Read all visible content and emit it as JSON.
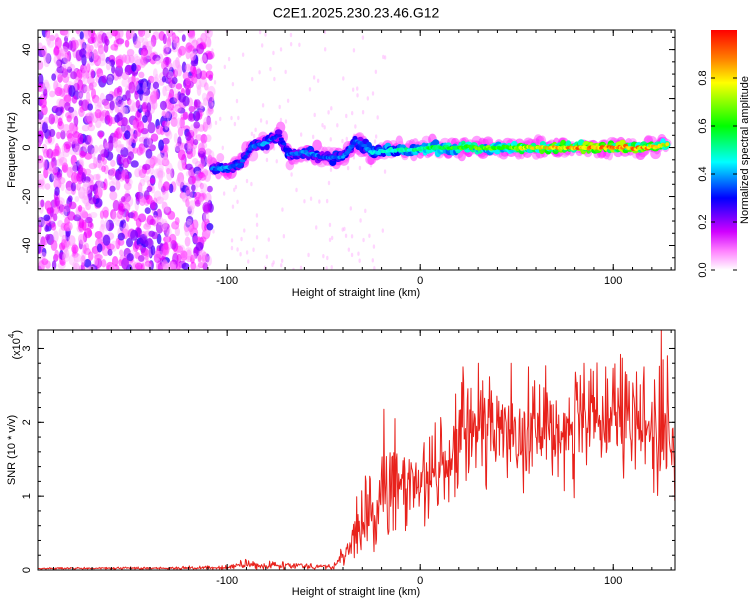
{
  "title": "C2E1.2025.230.23.46.G12",
  "chart_data": [
    {
      "type": "heatmap",
      "xlabel": "Height of straight line (km)",
      "ylabel": "Frequency (Hz)",
      "xlim": [
        -198,
        132
      ],
      "ylim": [
        -50,
        48
      ],
      "x_ticks": [
        -100,
        0,
        100
      ],
      "x_tick_labels": [
        "-100",
        "0",
        "100"
      ],
      "y_ticks": [
        -40,
        -20,
        0,
        20,
        40
      ],
      "y_tick_labels": [
        "-40",
        "-20",
        "0",
        "20",
        "40"
      ],
      "colorbar": {
        "label": "Normalized spectral amplitude",
        "range": [
          0,
          1
        ],
        "ticks": [
          0.0,
          0.2,
          0.4,
          0.6,
          0.8
        ],
        "tick_labels": [
          "0.0",
          "0.2",
          "0.4",
          "0.6",
          "0.8"
        ],
        "colors": [
          "#ffffff",
          "#ff00ff",
          "#0000ff",
          "#00ffff",
          "#00ff00",
          "#ffff00",
          "#ff0000"
        ]
      },
      "noise_region": {
        "x": [
          -198,
          -108
        ],
        "y": [
          -50,
          48
        ],
        "amplitude": [
          0.05,
          0.3
        ]
      },
      "signal_track": [
        {
          "x": -108,
          "y": -9,
          "amp": 0.4
        },
        {
          "x": -100,
          "y": -8,
          "amp": 0.45
        },
        {
          "x": -93,
          "y": -7,
          "amp": 0.4
        },
        {
          "x": -88,
          "y": 0,
          "amp": 0.4
        },
        {
          "x": -80,
          "y": 2,
          "amp": 0.45
        },
        {
          "x": -73,
          "y": 5,
          "amp": 0.35
        },
        {
          "x": -68,
          "y": -3,
          "amp": 0.4
        },
        {
          "x": -60,
          "y": -2,
          "amp": 0.45
        },
        {
          "x": -50,
          "y": -4,
          "amp": 0.4
        },
        {
          "x": -40,
          "y": -4,
          "amp": 0.45
        },
        {
          "x": -33,
          "y": 3,
          "amp": 0.4
        },
        {
          "x": -25,
          "y": -2,
          "amp": 0.5
        },
        {
          "x": -15,
          "y": -1,
          "amp": 0.55
        },
        {
          "x": -5,
          "y": -1,
          "amp": 0.6
        },
        {
          "x": 5,
          "y": 0,
          "amp": 0.65
        },
        {
          "x": 20,
          "y": 0,
          "amp": 0.7
        },
        {
          "x": 40,
          "y": 0,
          "amp": 0.75
        },
        {
          "x": 60,
          "y": 0,
          "amp": 0.85
        },
        {
          "x": 75,
          "y": 0,
          "amp": 0.9
        },
        {
          "x": 90,
          "y": 0,
          "amp": 0.95
        },
        {
          "x": 105,
          "y": 0,
          "amp": 0.95
        },
        {
          "x": 118,
          "y": 0,
          "amp": 0.9
        },
        {
          "x": 128,
          "y": 1,
          "amp": 0.85
        }
      ]
    },
    {
      "type": "line",
      "xlabel": "Height of straight line (km)",
      "ylabel": "SNR (10 * v/v)",
      "y_multiplier_label": "(x10",
      "y_multiplier_exp": "4",
      "y_multiplier_close": ")",
      "xlim": [
        -198,
        132
      ],
      "ylim": [
        0,
        3.25
      ],
      "x_ticks": [
        -100,
        0,
        100
      ],
      "x_tick_labels": [
        "-100",
        "0",
        "100"
      ],
      "y_ticks": [
        0,
        1,
        2,
        3
      ],
      "y_tick_labels": [
        "0",
        "1",
        "2",
        "3"
      ],
      "color": "#e8211b",
      "envelope": [
        {
          "x": -198,
          "mean": 0.02,
          "spread": 0.01
        },
        {
          "x": -100,
          "mean": 0.03,
          "spread": 0.02
        },
        {
          "x": -92,
          "mean": 0.08,
          "spread": 0.05
        },
        {
          "x": -80,
          "mean": 0.04,
          "spread": 0.03
        },
        {
          "x": -76,
          "mean": 0.08,
          "spread": 0.05
        },
        {
          "x": -45,
          "mean": 0.04,
          "spread": 0.03
        },
        {
          "x": -36,
          "mean": 0.3,
          "spread": 0.2
        },
        {
          "x": -32,
          "mean": 0.7,
          "spread": 0.5
        },
        {
          "x": -24,
          "mean": 0.6,
          "spread": 0.4
        },
        {
          "x": -20,
          "mean": 1.2,
          "spread": 0.6
        },
        {
          "x": -13,
          "mean": 1.0,
          "spread": 0.6
        },
        {
          "x": -5,
          "mean": 1.2,
          "spread": 0.5
        },
        {
          "x": 5,
          "mean": 1.3,
          "spread": 0.5
        },
        {
          "x": 15,
          "mean": 1.4,
          "spread": 0.5
        },
        {
          "x": 22,
          "mean": 1.9,
          "spread": 0.6
        },
        {
          "x": 40,
          "mean": 1.9,
          "spread": 0.6
        },
        {
          "x": 60,
          "mean": 1.9,
          "spread": 0.6
        },
        {
          "x": 80,
          "mean": 1.95,
          "spread": 0.6
        },
        {
          "x": 100,
          "mean": 2.0,
          "spread": 0.6
        },
        {
          "x": 120,
          "mean": 1.9,
          "spread": 0.8
        },
        {
          "x": 132,
          "mean": 1.7,
          "spread": 0.8
        }
      ],
      "peaks": [
        {
          "x": -93,
          "y": 0.13
        },
        {
          "x": -78,
          "y": 0.12
        },
        {
          "x": -28,
          "y": 1.2
        },
        {
          "x": -13,
          "y": 2.05
        },
        {
          "x": 5,
          "y": 1.8
        },
        {
          "x": 22,
          "y": 2.75
        },
        {
          "x": 30,
          "y": 2.8
        },
        {
          "x": 47,
          "y": 2.8
        },
        {
          "x": 56,
          "y": 2.75
        },
        {
          "x": 85,
          "y": 2.8
        },
        {
          "x": 96,
          "y": 2.75
        },
        {
          "x": 116,
          "y": 2.75
        },
        {
          "x": 125,
          "y": 3.25
        },
        {
          "x": 128,
          "y": 2.9
        }
      ]
    }
  ]
}
